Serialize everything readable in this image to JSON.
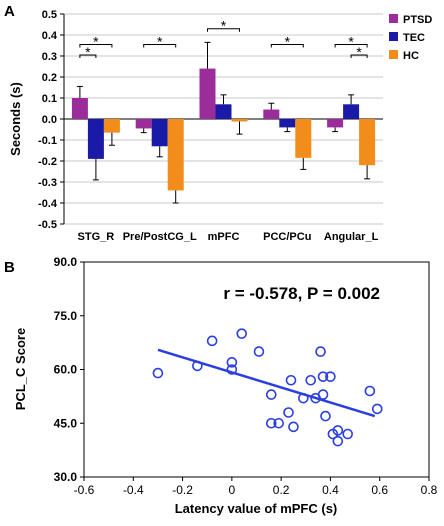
{
  "chart_data": [
    {
      "panel_label": "A",
      "type": "bar",
      "ylabel": "Seconds (s)",
      "ylim": [
        -0.5,
        0.5
      ],
      "yticks": [
        "-0.5",
        "-0.4",
        "-0.3",
        "-0.2",
        "-0.1",
        "0.0",
        "0.1",
        "0.2",
        "0.3",
        "0.4",
        "0.5"
      ],
      "ytick_values": [
        -0.5,
        -0.4,
        -0.3,
        -0.2,
        -0.1,
        0.0,
        0.1,
        0.2,
        0.3,
        0.4,
        0.5
      ],
      "grid": true,
      "legend_placement": "right",
      "categories": [
        "STG_R",
        "Pre/PostCG_L",
        "mPFC",
        "PCC/PCu",
        "Angular_L"
      ],
      "series": [
        {
          "name": "PTSD",
          "color": "#9b2d9b",
          "values": [
            0.1,
            -0.045,
            0.24,
            0.045,
            -0.04
          ],
          "errors": [
            0.055,
            0.02,
            0.125,
            0.03,
            0.02
          ]
        },
        {
          "name": "TEC",
          "color": "#1a1aa8",
          "values": [
            -0.19,
            -0.13,
            0.07,
            -0.04,
            0.07
          ],
          "errors": [
            0.1,
            0.05,
            0.045,
            0.02,
            0.045
          ]
        },
        {
          "name": "HC",
          "color": "#f28c1a",
          "values": [
            -0.065,
            -0.34,
            -0.012,
            -0.185,
            -0.22
          ],
          "errors": [
            0.06,
            0.06,
            0.06,
            0.055,
            0.065
          ]
        }
      ],
      "significance_brackets": [
        {
          "category": 0,
          "from": 0,
          "to": 2,
          "level": 0.355,
          "label": "*"
        },
        {
          "category": 0,
          "from": 0,
          "to": 1,
          "level": 0.305,
          "label": "*"
        },
        {
          "category": 1,
          "from": 0,
          "to": 2,
          "level": 0.355,
          "label": "*"
        },
        {
          "category": 2,
          "from": 0,
          "to": 2,
          "level": 0.43,
          "label": "*"
        },
        {
          "category": 3,
          "from": 0,
          "to": 2,
          "level": 0.355,
          "label": "*"
        },
        {
          "category": 4,
          "from": 0,
          "to": 2,
          "level": 0.355,
          "label": "*"
        },
        {
          "category": 4,
          "from": 1,
          "to": 2,
          "level": 0.305,
          "label": "*"
        }
      ]
    },
    {
      "panel_label": "B",
      "type": "scatter",
      "xlabel": "Latency value of mPFC (s)",
      "ylabel": "PCL_C Score",
      "xlim": [
        -0.6,
        0.8
      ],
      "ylim": [
        30,
        90
      ],
      "xticks": [
        "-0.6",
        "-0.4",
        "-0.2",
        "0",
        "0.2",
        "0.4",
        "0.6",
        "0.8"
      ],
      "xtick_values": [
        -0.6,
        -0.4,
        -0.2,
        0,
        0.2,
        0.4,
        0.6,
        0.8
      ],
      "yticks": [
        "30.0",
        "45.0",
        "60.0",
        "75.0",
        "90.0"
      ],
      "ytick_values": [
        30,
        45,
        60,
        75,
        90
      ],
      "annotation": "r = -0.578, P = 0.002",
      "marker_color": "#2b3fe0",
      "points": [
        [
          -0.3,
          59
        ],
        [
          -0.14,
          61
        ],
        [
          -0.08,
          68
        ],
        [
          0.0,
          62
        ],
        [
          0.0,
          60
        ],
        [
          0.04,
          70
        ],
        [
          0.11,
          65
        ],
        [
          0.16,
          53
        ],
        [
          0.16,
          45
        ],
        [
          0.19,
          45
        ],
        [
          0.23,
          48
        ],
        [
          0.24,
          57
        ],
        [
          0.25,
          44
        ],
        [
          0.29,
          52
        ],
        [
          0.32,
          57
        ],
        [
          0.34,
          52
        ],
        [
          0.36,
          65
        ],
        [
          0.37,
          58
        ],
        [
          0.37,
          53
        ],
        [
          0.38,
          47
        ],
        [
          0.4,
          58
        ],
        [
          0.41,
          42
        ],
        [
          0.43,
          40
        ],
        [
          0.43,
          43
        ],
        [
          0.47,
          42
        ],
        [
          0.56,
          54
        ],
        [
          0.59,
          49
        ]
      ],
      "regression": {
        "x": [
          -0.3,
          0.58
        ],
        "y": [
          65.5,
          47
        ]
      }
    }
  ]
}
